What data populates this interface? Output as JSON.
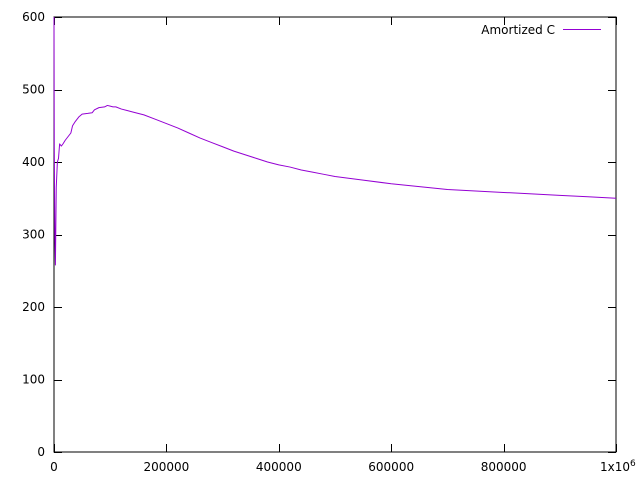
{
  "chart_data": {
    "type": "line",
    "title": "",
    "xlabel": "",
    "ylabel": "",
    "xlim": [
      0,
      1000000
    ],
    "ylim": [
      0,
      600
    ],
    "x_ticks": [
      0,
      200000,
      400000,
      600000,
      800000,
      1000000
    ],
    "x_tick_labels": [
      "0",
      "200000",
      "400000",
      "600000",
      "800000",
      "1x10"
    ],
    "x_tick_exponent": "6",
    "y_ticks": [
      0,
      100,
      200,
      300,
      400,
      500,
      600
    ],
    "y_tick_labels": [
      "0",
      "100",
      "200",
      "300",
      "400",
      "500",
      "600"
    ],
    "grid": false,
    "legend": {
      "position": "top-right"
    },
    "series": [
      {
        "name": "Amortized C",
        "color": "#9400d3",
        "points": [
          [
            0,
            600
          ],
          [
            500,
            420
          ],
          [
            1500,
            300
          ],
          [
            2500,
            258
          ],
          [
            4000,
            365
          ],
          [
            6000,
            400
          ],
          [
            8000,
            405
          ],
          [
            10000,
            425
          ],
          [
            13000,
            422
          ],
          [
            16000,
            425
          ],
          [
            20000,
            430
          ],
          [
            25000,
            435
          ],
          [
            30000,
            440
          ],
          [
            33000,
            450
          ],
          [
            38000,
            456
          ],
          [
            44000,
            462
          ],
          [
            50000,
            466
          ],
          [
            60000,
            467
          ],
          [
            68000,
            468
          ],
          [
            72000,
            472
          ],
          [
            80000,
            475
          ],
          [
            90000,
            476
          ],
          [
            95000,
            478
          ],
          [
            100000,
            477
          ],
          [
            105000,
            476
          ],
          [
            110000,
            476
          ],
          [
            120000,
            473
          ],
          [
            130000,
            471
          ],
          [
            140000,
            469
          ],
          [
            160000,
            465
          ],
          [
            180000,
            459
          ],
          [
            200000,
            453
          ],
          [
            220000,
            447
          ],
          [
            240000,
            440
          ],
          [
            260000,
            433
          ],
          [
            280000,
            427
          ],
          [
            300000,
            421
          ],
          [
            320000,
            415
          ],
          [
            340000,
            410
          ],
          [
            360000,
            405
          ],
          [
            380000,
            400
          ],
          [
            400000,
            396
          ],
          [
            420000,
            393
          ],
          [
            440000,
            389
          ],
          [
            460000,
            386
          ],
          [
            480000,
            383
          ],
          [
            500000,
            380
          ],
          [
            550000,
            375
          ],
          [
            600000,
            370
          ],
          [
            650000,
            366
          ],
          [
            700000,
            362
          ],
          [
            750000,
            360
          ],
          [
            800000,
            358
          ],
          [
            850000,
            356
          ],
          [
            900000,
            354
          ],
          [
            950000,
            352
          ],
          [
            1000000,
            350
          ]
        ]
      }
    ]
  },
  "colors": {
    "axis": "#000000",
    "series": "#9400d3",
    "background": "#ffffff"
  }
}
